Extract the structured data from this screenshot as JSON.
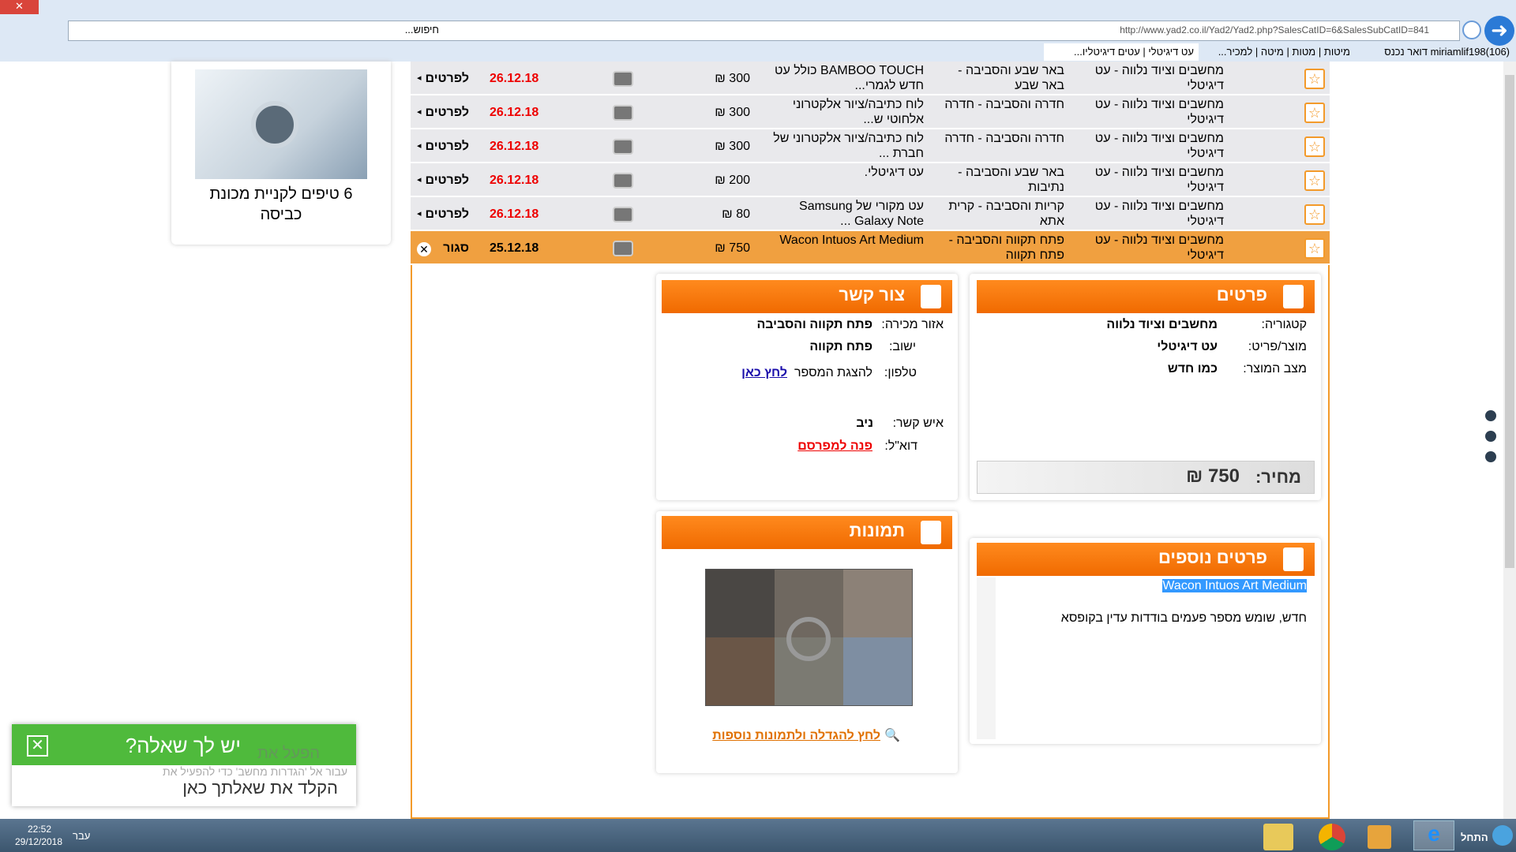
{
  "browser": {
    "address": "http://www.yad2.co.il/Yad2/Yad2.php?SalesCatID=6&SalesSubCatID=841",
    "search": "חיפוש...",
    "tabs": [
      "עט דיגיטלי | עטים דיגיטליו...",
      "מיטות | מטות | מיטה | למכיר...",
      "miriamlif198(106) דואר נכנס"
    ]
  },
  "ad": {
    "caption": "6 טיפים לקניית מכונת כביסה"
  },
  "listings": {
    "rows": [
      {
        "category": "מחשבים וציוד נלווה - עט דיגיטלי",
        "area": "באר שבע והסביבה - באר שבע",
        "description": "BAMBOO TOUCH כולל עט חדש לגמרי...",
        "price": "300 ₪",
        "date": "26.12.18",
        "action": "לפרטים"
      },
      {
        "category": "מחשבים וציוד נלווה - עט דיגיטלי",
        "area": "חדרה והסביבה - חדרה",
        "description": "לוח כתיבה/ציור אלקטרוני אלחוטי ש...",
        "price": "300 ₪",
        "date": "26.12.18",
        "action": "לפרטים"
      },
      {
        "category": "מחשבים וציוד נלווה - עט דיגיטלי",
        "area": "חדרה והסביבה - חדרה",
        "description": "לוח כתיבה/ציור אלקטרוני של חברת ...",
        "price": "300 ₪",
        "date": "26.12.18",
        "action": "לפרטים"
      },
      {
        "category": "מחשבים וציוד נלווה - עט דיגיטלי",
        "area": "באר שבע והסביבה - נתיבות",
        "description": "עט דיגיטלי.",
        "price": "200 ₪",
        "date": "26.12.18",
        "action": "לפרטים"
      },
      {
        "category": "מחשבים וציוד נלווה - עט דיגיטלי",
        "area": "קריות והסביבה - קרית אתא",
        "description": "עט מקורי של Samsung Galaxy Note ...",
        "price": "80 ₪",
        "date": "26.12.18",
        "action": "לפרטים"
      },
      {
        "category": "מחשבים וציוד נלווה - עט דיגיטלי",
        "area": "פתח תקווה והסביבה - פתח תקווה",
        "description": "Wacon Intuos Art Medium",
        "price": "750 ₪",
        "date": "25.12.18",
        "action": "סגור"
      }
    ]
  },
  "details": {
    "title": "פרטים",
    "fields": [
      {
        "label": "קטגוריה:",
        "value": "מחשבים וציוד נלווה"
      },
      {
        "label": "מוצר/פריט:",
        "value": "עט דיגיטלי"
      },
      {
        "label": "מצב המוצר:",
        "value": "כמו חדש"
      }
    ],
    "price_label": "מחיר:",
    "price": "750 ₪"
  },
  "contact": {
    "title": "צור קשר",
    "area_label": "אזור מכירה:",
    "area": "פתח תקווה והסביבה",
    "city_label": "ישוב:",
    "city": "פתח תקווה",
    "phone_label": "טלפון:",
    "phone_text": "להצגת המספר",
    "phone_link": "לחץ כאן",
    "person_label": "איש קשר:",
    "person": "ניב",
    "email_label": "דוא\"ל:",
    "email_link": "פנה למפרסם"
  },
  "photos": {
    "title": "תמונות",
    "link": "לחץ להגדלה ולתמונות נוספות"
  },
  "more": {
    "title": "פרטים נוספים",
    "highlight": "Wacon Intuos Art Medium",
    "text": "חדש, שומש מספר פעמים בודדות עדין בקופסא"
  },
  "chat": {
    "title": "יש לך שאלה?",
    "input": "הקלד את שאלתך כאן"
  },
  "activation": {
    "line1": "הפעל את",
    "line2": "עבור אל 'הגדרות מחשב' כדי להפעיל את"
  },
  "taskbar": {
    "start": "התחל",
    "lang": "עבר",
    "time": "22:52",
    "date": "29/12/2018"
  }
}
